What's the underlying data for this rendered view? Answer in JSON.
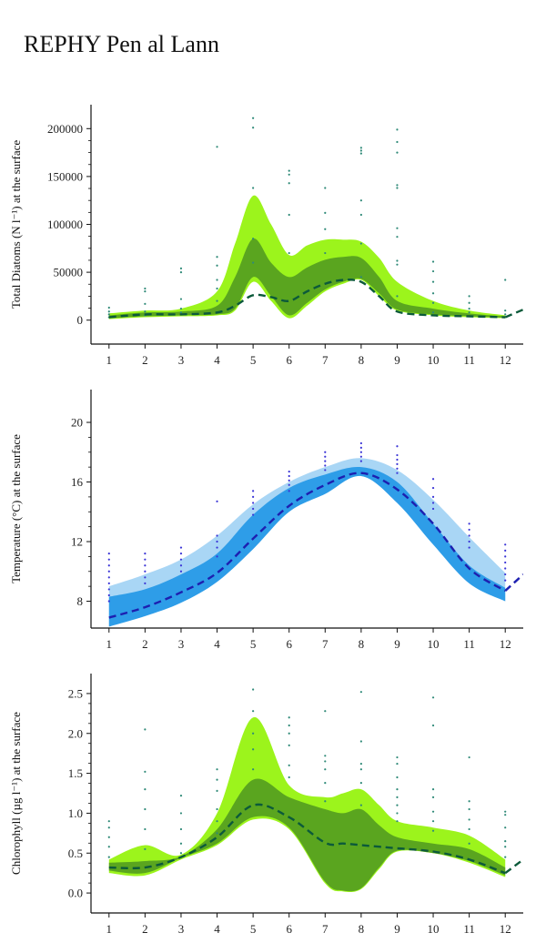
{
  "page": {
    "title": "REPHY Pen al Lann"
  },
  "colors": {
    "diatom_outer": "#9cf41c",
    "diatom_inner": "#5aa51f",
    "diatom_median": "#0c5a3a",
    "diatom_points": "#2f8a78",
    "temp_outer": "#a9d6f5",
    "temp_inner": "#2e9de8",
    "temp_median": "#1d1fb0",
    "temp_points": "#3a34d6",
    "axis": "#111111"
  },
  "chart_data": [
    {
      "type": "area",
      "ylabel": "Total Diatoms (N l⁻¹) at the surface",
      "xlim": [
        0.5,
        12.5
      ],
      "ylim": [
        -25000,
        225000
      ],
      "xticks": [
        1,
        2,
        3,
        4,
        5,
        6,
        7,
        8,
        9,
        10,
        11,
        12
      ],
      "yticks": [
        0,
        50000,
        100000,
        150000,
        200000
      ],
      "ytick_labels": [
        "0",
        "50000",
        "100000",
        "150000",
        "200000"
      ],
      "x": [
        1,
        2,
        3,
        4,
        4.5,
        5,
        5.5,
        6,
        6.5,
        7,
        7.5,
        8,
        8.5,
        9,
        10,
        11,
        12
      ],
      "outer_low": [
        1000,
        3000,
        4000,
        5000,
        10000,
        40000,
        20000,
        2000,
        15000,
        30000,
        38000,
        42000,
        25000,
        10000,
        5000,
        3000,
        2000
      ],
      "outer_high": [
        7000,
        10000,
        12000,
        30000,
        80000,
        130000,
        100000,
        68000,
        78000,
        84000,
        84000,
        82000,
        65000,
        40000,
        20000,
        10000,
        5000
      ],
      "inner_low": [
        2000,
        4000,
        5000,
        6000,
        12000,
        45000,
        25000,
        5000,
        18000,
        32000,
        40000,
        43000,
        28000,
        11000,
        6000,
        4000,
        2500
      ],
      "inner_high": [
        5000,
        8000,
        9000,
        15000,
        45000,
        85000,
        60000,
        45000,
        55000,
        63000,
        66000,
        65000,
        45000,
        20000,
        12000,
        7000,
        4000
      ],
      "median": [
        3000,
        6000,
        6000,
        8000,
        15000,
        26000,
        24000,
        20000,
        30000,
        38000,
        42000,
        40000,
        25000,
        9000,
        5000,
        4000,
        3000
      ],
      "extension": {
        "x": [
          12,
          12.5
        ],
        "y": [
          3000,
          11000
        ]
      },
      "points": [
        [
          1,
          3000
        ],
        [
          1,
          6000
        ],
        [
          1,
          9000
        ],
        [
          1,
          13000
        ],
        [
          2,
          5000
        ],
        [
          2,
          9000
        ],
        [
          2,
          17000
        ],
        [
          2,
          30000
        ],
        [
          2,
          33000
        ],
        [
          3,
          8000
        ],
        [
          3,
          12000
        ],
        [
          3,
          22000
        ],
        [
          3,
          50000
        ],
        [
          3,
          54000
        ],
        [
          4,
          8000
        ],
        [
          4,
          20000
        ],
        [
          4,
          33000
        ],
        [
          4,
          42000
        ],
        [
          4,
          57000
        ],
        [
          4,
          66000
        ],
        [
          4,
          181000
        ],
        [
          5,
          60000
        ],
        [
          5,
          85000
        ],
        [
          5,
          138000
        ],
        [
          5,
          201000
        ],
        [
          5,
          211000
        ],
        [
          6,
          70000
        ],
        [
          6,
          110000
        ],
        [
          6,
          143000
        ],
        [
          6,
          152000
        ],
        [
          6,
          156000
        ],
        [
          7,
          70000
        ],
        [
          7,
          95000
        ],
        [
          7,
          112000
        ],
        [
          7,
          138000
        ],
        [
          8,
          45000
        ],
        [
          8,
          80000
        ],
        [
          8,
          110000
        ],
        [
          8,
          125000
        ],
        [
          8,
          174000
        ],
        [
          8,
          177000
        ],
        [
          8,
          180000
        ],
        [
          9,
          25000
        ],
        [
          9,
          58000
        ],
        [
          9,
          62000
        ],
        [
          9,
          87000
        ],
        [
          9,
          96000
        ],
        [
          9,
          138000
        ],
        [
          9,
          141000
        ],
        [
          9,
          175000
        ],
        [
          9,
          186000
        ],
        [
          9,
          199000
        ],
        [
          10,
          8000
        ],
        [
          10,
          18000
        ],
        [
          10,
          28000
        ],
        [
          10,
          40000
        ],
        [
          10,
          51000
        ],
        [
          10,
          61000
        ],
        [
          11,
          8000
        ],
        [
          11,
          12000
        ],
        [
          11,
          18000
        ],
        [
          11,
          25000
        ],
        [
          12,
          6000
        ],
        [
          12,
          10000
        ],
        [
          12,
          42000
        ]
      ]
    },
    {
      "type": "area",
      "ylabel": "Temperature (°C) at the surface",
      "xlim": [
        0.5,
        12.5
      ],
      "ylim": [
        6.2,
        22.2
      ],
      "xticks": [
        1,
        2,
        3,
        4,
        5,
        6,
        7,
        8,
        9,
        10,
        11,
        12
      ],
      "yticks": [
        8,
        12,
        16,
        20
      ],
      "ytick_labels": [
        "8",
        "12",
        "16",
        "20"
      ],
      "x": [
        1,
        2,
        3,
        4,
        5,
        6,
        7,
        8,
        9,
        10,
        11,
        12
      ],
      "outer_low": [
        6.3,
        7.0,
        7.9,
        9.3,
        11.5,
        14.0,
        15.2,
        16.4,
        14.6,
        11.8,
        9.2,
        8.0
      ],
      "outer_high": [
        9.0,
        9.8,
        10.8,
        12.4,
        14.5,
        16.0,
        17.0,
        17.6,
        16.8,
        14.8,
        12.3,
        9.9
      ],
      "inner_low": [
        6.3,
        7.0,
        7.9,
        9.3,
        11.5,
        14.0,
        15.2,
        16.4,
        14.6,
        11.8,
        9.2,
        8.0
      ],
      "inner_high": [
        8.3,
        8.8,
        9.8,
        11.2,
        13.8,
        15.6,
        16.5,
        17.0,
        16.0,
        13.2,
        10.4,
        8.9
      ],
      "median": [
        6.9,
        7.6,
        8.6,
        9.9,
        12.2,
        14.4,
        15.8,
        16.6,
        15.5,
        13.2,
        10.2,
        8.7
      ],
      "extension": {
        "x": [
          12,
          12.5
        ],
        "y": [
          8.7,
          9.8
        ]
      },
      "points": [
        [
          1,
          8.0
        ],
        [
          1,
          8.4
        ],
        [
          1,
          8.8
        ],
        [
          1,
          9.2
        ],
        [
          1,
          9.6
        ],
        [
          1,
          10.0
        ],
        [
          1,
          10.4
        ],
        [
          1,
          10.8
        ],
        [
          1,
          11.2
        ],
        [
          2,
          9.2
        ],
        [
          2,
          9.6
        ],
        [
          2,
          10.0
        ],
        [
          2,
          10.4
        ],
        [
          2,
          10.8
        ],
        [
          2,
          11.2
        ],
        [
          3,
          10.0
        ],
        [
          3,
          10.4
        ],
        [
          3,
          10.8
        ],
        [
          3,
          11.2
        ],
        [
          3,
          11.6
        ],
        [
          4,
          11.0
        ],
        [
          4,
          11.6
        ],
        [
          4,
          12.0
        ],
        [
          4,
          12.4
        ],
        [
          4,
          14.7
        ],
        [
          5,
          13.8
        ],
        [
          5,
          14.2
        ],
        [
          5,
          14.6
        ],
        [
          5,
          15.0
        ],
        [
          5,
          15.4
        ],
        [
          6,
          15.4
        ],
        [
          6,
          15.8
        ],
        [
          6,
          16.1
        ],
        [
          6,
          16.4
        ],
        [
          6,
          16.7
        ],
        [
          7,
          16.8
        ],
        [
          7,
          17.1
        ],
        [
          7,
          17.4
        ],
        [
          7,
          17.7
        ],
        [
          7,
          18.0
        ],
        [
          8,
          17.4
        ],
        [
          8,
          17.7
        ],
        [
          8,
          18.0
        ],
        [
          8,
          18.3
        ],
        [
          8,
          18.6
        ],
        [
          9,
          16.6
        ],
        [
          9,
          16.9
        ],
        [
          9,
          17.2
        ],
        [
          9,
          17.5
        ],
        [
          9,
          17.8
        ],
        [
          9,
          18.4
        ],
        [
          10,
          14.2
        ],
        [
          10,
          14.6
        ],
        [
          10,
          15.0
        ],
        [
          10,
          15.6
        ],
        [
          10,
          16.2
        ],
        [
          11,
          11.6
        ],
        [
          11,
          12.0
        ],
        [
          11,
          12.4
        ],
        [
          11,
          12.8
        ],
        [
          11,
          13.2
        ],
        [
          12,
          9.4
        ],
        [
          12,
          9.8
        ],
        [
          12,
          10.2
        ],
        [
          12,
          10.6
        ],
        [
          12,
          11.0
        ],
        [
          12,
          11.4
        ],
        [
          12,
          11.8
        ]
      ]
    },
    {
      "type": "area",
      "ylabel": "Chlorophyll (µg l⁻¹) at the surface",
      "xlim": [
        0.5,
        12.5
      ],
      "ylim": [
        -0.25,
        2.75
      ],
      "xticks": [
        1,
        2,
        3,
        4,
        5,
        6,
        7,
        8,
        9,
        10,
        11,
        12
      ],
      "yticks": [
        0.0,
        0.5,
        1.0,
        1.5,
        2.0,
        2.5
      ],
      "ytick_labels": [
        "0.0",
        "0.5",
        "1.0",
        "1.5",
        "2.0",
        "2.5"
      ],
      "x": [
        1,
        2,
        3,
        4,
        5,
        6,
        7,
        7.5,
        8,
        8.5,
        9,
        10,
        11,
        12
      ],
      "outer_low": [
        0.25,
        0.22,
        0.42,
        0.6,
        0.92,
        0.8,
        0.12,
        0.02,
        0.05,
        0.3,
        0.52,
        0.5,
        0.38,
        0.2
      ],
      "outer_high": [
        0.42,
        0.6,
        0.48,
        1.0,
        2.2,
        1.35,
        1.2,
        1.25,
        1.3,
        1.1,
        0.9,
        0.82,
        0.72,
        0.42
      ],
      "inner_low": [
        0.28,
        0.25,
        0.44,
        0.62,
        0.95,
        0.82,
        0.14,
        0.03,
        0.06,
        0.32,
        0.53,
        0.5,
        0.4,
        0.22
      ],
      "inner_high": [
        0.38,
        0.4,
        0.46,
        0.8,
        1.42,
        1.2,
        1.05,
        1.0,
        1.05,
        0.85,
        0.7,
        0.62,
        0.55,
        0.32
      ],
      "median": [
        0.32,
        0.32,
        0.45,
        0.7,
        1.1,
        0.95,
        0.63,
        0.62,
        0.6,
        0.58,
        0.56,
        0.52,
        0.42,
        0.25
      ],
      "extension": {
        "x": [
          12,
          12.5
        ],
        "y": [
          0.25,
          0.42
        ]
      },
      "points": [
        [
          1,
          0.45
        ],
        [
          1,
          0.58
        ],
        [
          1,
          0.7
        ],
        [
          1,
          0.82
        ],
        [
          1,
          0.9
        ],
        [
          2,
          0.55
        ],
        [
          2,
          0.8
        ],
        [
          2,
          1.05
        ],
        [
          2,
          1.3
        ],
        [
          2,
          1.52
        ],
        [
          2,
          2.05
        ],
        [
          3,
          0.5
        ],
        [
          3,
          0.62
        ],
        [
          3,
          0.8
        ],
        [
          3,
          1.0
        ],
        [
          3,
          1.22
        ],
        [
          4,
          0.75
        ],
        [
          4,
          0.9
        ],
        [
          4,
          1.05
        ],
        [
          4,
          1.28
        ],
        [
          4,
          1.42
        ],
        [
          4,
          1.55
        ],
        [
          5,
          1.55
        ],
        [
          5,
          1.8
        ],
        [
          5,
          2.0
        ],
        [
          5,
          2.28
        ],
        [
          5,
          2.55
        ],
        [
          6,
          1.45
        ],
        [
          6,
          1.6
        ],
        [
          6,
          1.85
        ],
        [
          6,
          2.0
        ],
        [
          6,
          2.1
        ],
        [
          6,
          2.2
        ],
        [
          7,
          1.15
        ],
        [
          7,
          1.38
        ],
        [
          7,
          1.55
        ],
        [
          7,
          1.65
        ],
        [
          7,
          1.72
        ],
        [
          7,
          2.28
        ],
        [
          8,
          1.1
        ],
        [
          8,
          1.38
        ],
        [
          8,
          1.55
        ],
        [
          8,
          1.62
        ],
        [
          8,
          1.9
        ],
        [
          8,
          2.52
        ],
        [
          9,
          0.9
        ],
        [
          9,
          1.0
        ],
        [
          9,
          1.1
        ],
        [
          9,
          1.2
        ],
        [
          9,
          1.3
        ],
        [
          9,
          1.45
        ],
        [
          9,
          1.62
        ],
        [
          9,
          1.7
        ],
        [
          10,
          0.78
        ],
        [
          10,
          0.9
        ],
        [
          10,
          1.02
        ],
        [
          10,
          1.2
        ],
        [
          10,
          1.3
        ],
        [
          10,
          2.1
        ],
        [
          10,
          2.45
        ],
        [
          11,
          0.62
        ],
        [
          11,
          0.8
        ],
        [
          11,
          0.92
        ],
        [
          11,
          1.05
        ],
        [
          11,
          1.15
        ],
        [
          11,
          1.7
        ],
        [
          12,
          0.45
        ],
        [
          12,
          0.58
        ],
        [
          12,
          0.65
        ],
        [
          12,
          0.82
        ],
        [
          12,
          0.98
        ],
        [
          12,
          1.02
        ]
      ]
    }
  ]
}
